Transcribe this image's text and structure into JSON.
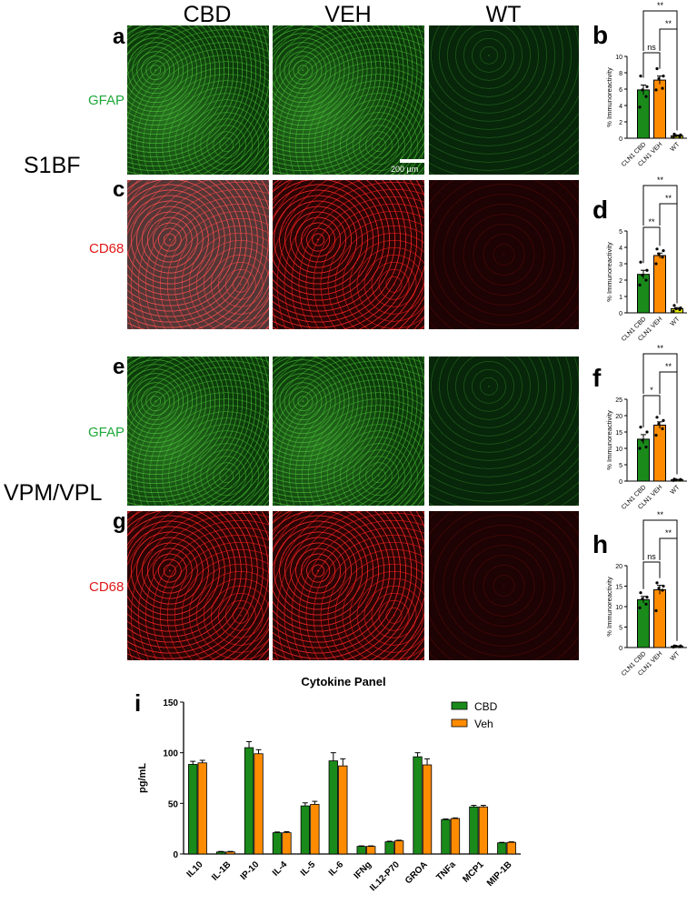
{
  "columns": [
    "CBD",
    "VEH",
    "WT"
  ],
  "regions": [
    "S1BF",
    "VPM/VPL"
  ],
  "rows": [
    {
      "letter": "a",
      "stain": "GFAP",
      "color": "#1fa83a"
    },
    {
      "letter": "c",
      "stain": "CD68",
      "color": "#e01818"
    },
    {
      "letter": "e",
      "stain": "GFAP",
      "color": "#1fa83a"
    },
    {
      "letter": "g",
      "stain": "CD68",
      "color": "#e01818"
    }
  ],
  "scale_bar": "200 µm",
  "colors": {
    "cbd": "#1a8a1a",
    "veh": "#ff8c00",
    "wt": "#e8e800"
  },
  "chart_data": [
    {
      "type": "bar",
      "letter": "b",
      "ylabel": "% Immunoreactivity",
      "ylim": [
        0,
        10
      ],
      "yticks": [
        0,
        2,
        4,
        6,
        8,
        10
      ],
      "categories": [
        "CLN1 CBD",
        "CLN1 VEH",
        "WT"
      ],
      "values": [
        5.9,
        7.1,
        0.3
      ],
      "sem": [
        0.6,
        0.5,
        0.1
      ],
      "points": [
        [
          3.8,
          5.1,
          5.9,
          6.3,
          7.6
        ],
        [
          5.9,
          6.1,
          7.3,
          7.6,
          8.5
        ],
        [
          0.1,
          0.2,
          0.3,
          0.4,
          0.5
        ]
      ],
      "significance": [
        {
          "pair": [
            0,
            1
          ],
          "label": "ns"
        },
        {
          "pair": [
            1,
            2
          ],
          "label": "**"
        },
        {
          "pair": [
            0,
            2
          ],
          "label": "**"
        }
      ]
    },
    {
      "type": "bar",
      "letter": "d",
      "ylabel": "% Immunoreactivity",
      "ylim": [
        0,
        5
      ],
      "yticks": [
        0,
        1,
        2,
        3,
        4,
        5
      ],
      "categories": [
        "CLN1 CBD",
        "CLN1 VEH",
        "WT"
      ],
      "values": [
        2.35,
        3.5,
        0.25
      ],
      "sem": [
        0.25,
        0.15,
        0.07
      ],
      "points": [
        [
          1.7,
          2.0,
          2.3,
          2.6,
          3.1
        ],
        [
          3.0,
          3.4,
          3.6,
          3.8,
          3.9
        ],
        [
          0.1,
          0.2,
          0.25,
          0.3,
          0.45
        ]
      ],
      "significance": [
        {
          "pair": [
            0,
            1
          ],
          "label": "**"
        },
        {
          "pair": [
            1,
            2
          ],
          "label": "**"
        },
        {
          "pair": [
            0,
            2
          ],
          "label": "**"
        }
      ]
    },
    {
      "type": "bar",
      "letter": "f",
      "ylabel": "% Immunoreactivity",
      "ylim": [
        0,
        25
      ],
      "yticks": [
        0,
        5,
        10,
        15,
        20,
        25
      ],
      "categories": [
        "CLN1 CBD",
        "CLN1 VEH",
        "WT"
      ],
      "values": [
        12.8,
        17.1,
        0.4
      ],
      "sem": [
        1.4,
        1.0,
        0.1
      ],
      "points": [
        [
          10.0,
          10.4,
          12.5,
          15.0,
          16.5
        ],
        [
          14.0,
          16.0,
          17.5,
          18.5,
          19.5
        ],
        [
          0.2,
          0.3,
          0.4,
          0.5,
          0.6
        ]
      ],
      "significance": [
        {
          "pair": [
            0,
            1
          ],
          "label": "*"
        },
        {
          "pair": [
            1,
            2
          ],
          "label": "**"
        },
        {
          "pair": [
            0,
            2
          ],
          "label": "**"
        }
      ]
    },
    {
      "type": "bar",
      "letter": "h",
      "ylabel": "% Immunoreactivity",
      "ylim": [
        0,
        20
      ],
      "yticks": [
        0,
        5,
        10,
        15,
        20
      ],
      "categories": [
        "CLN1 CBD",
        "CLN1 VEH",
        "WT"
      ],
      "values": [
        11.7,
        14.1,
        0.3
      ],
      "sem": [
        0.8,
        1.1,
        0.1
      ],
      "points": [
        [
          9.7,
          10.6,
          11.9,
          12.3,
          13.4
        ],
        [
          9.0,
          14.0,
          14.5,
          15.0,
          15.8
        ],
        [
          0.1,
          0.2,
          0.3,
          0.4,
          0.4
        ]
      ],
      "significance": [
        {
          "pair": [
            0,
            1
          ],
          "label": "ns"
        },
        {
          "pair": [
            1,
            2
          ],
          "label": "**"
        },
        {
          "pair": [
            0,
            2
          ],
          "label": "**"
        }
      ]
    },
    {
      "type": "bar",
      "letter": "i",
      "title": "Cytokine Panel",
      "ylabel": "pg/mL",
      "ylim": [
        0,
        150
      ],
      "yticks": [
        0,
        50,
        100,
        150
      ],
      "legend": "top-right",
      "categories": [
        "IL10",
        "IL-1B",
        "IP-10",
        "IL-4",
        "IL-5",
        "IL-6",
        "IFNg",
        "IL12-P70",
        "GROA",
        "TNFa",
        "MCP1",
        "MIP-1B"
      ],
      "series": [
        {
          "name": "CBD",
          "values": [
            88.5,
            2,
            105,
            21,
            47.5,
            92,
            7.5,
            12,
            96,
            34,
            46.5,
            11
          ],
          "sem": [
            3,
            0.5,
            6,
            0.7,
            3,
            8,
            0.5,
            0.6,
            4,
            0.6,
            1.5,
            0.5
          ]
        },
        {
          "name": "Veh",
          "values": [
            90,
            2,
            99,
            21,
            49,
            87,
            7.5,
            13,
            88,
            35,
            46.5,
            11.5
          ],
          "sem": [
            2.5,
            0.5,
            4,
            1,
            3,
            7,
            0.5,
            0.6,
            6,
            0.6,
            1.5,
            0.5
          ]
        }
      ]
    }
  ]
}
